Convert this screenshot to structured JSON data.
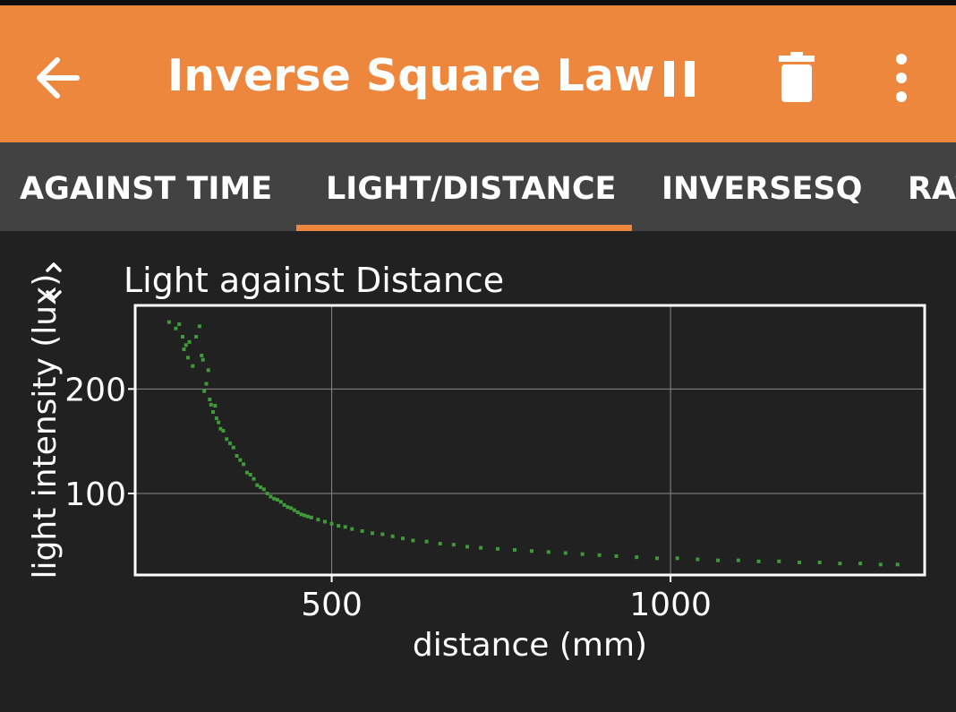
{
  "app": {
    "title": "Inverse Square Law",
    "accent_color": "#ee873e",
    "icons": {
      "back": "arrow-back-icon",
      "pause": "pause-icon",
      "delete": "trash-icon",
      "more": "more-vert-icon"
    }
  },
  "tabs": [
    {
      "label": "AGAINST TIME",
      "selected": false
    },
    {
      "label": "LIGHT/DISTANCE",
      "selected": true
    },
    {
      "label": "INVERSESQ",
      "selected": false
    },
    {
      "label": "RAW",
      "selected": false
    }
  ],
  "chart_data": {
    "type": "scatter",
    "title": "Light against Distance",
    "xlabel": "distance (mm)",
    "ylabel": "light intensity (lux)",
    "xlim": [
      210,
      1375
    ],
    "ylim": [
      22,
      280
    ],
    "xticks": [
      500,
      1000
    ],
    "yticks": [
      100,
      200
    ],
    "grid": true,
    "point_color": "#3f9a3a",
    "series": [
      {
        "x": [
          260,
          270,
          275,
          280,
          282,
          285,
          288,
          290,
          295,
          300,
          305,
          308,
          310,
          312,
          315,
          318,
          320,
          322,
          325,
          328,
          330,
          333,
          336,
          340,
          345,
          350,
          355,
          360,
          365,
          370,
          375,
          380,
          385,
          390,
          395,
          400,
          405,
          410,
          415,
          420,
          425,
          430,
          435,
          440,
          445,
          450,
          455,
          460,
          465,
          470,
          480,
          490,
          500,
          510,
          520,
          530,
          545,
          560,
          575,
          590,
          605,
          620,
          640,
          660,
          680,
          700,
          720,
          745,
          770,
          795,
          820,
          845,
          870,
          895,
          920,
          950,
          980,
          1010,
          1040,
          1070,
          1100,
          1130,
          1160,
          1190,
          1220,
          1250,
          1280,
          1310,
          1335
        ],
        "y": [
          264,
          258,
          262,
          250,
          238,
          242,
          230,
          245,
          222,
          250,
          260,
          232,
          228,
          198,
          205,
          218,
          190,
          185,
          178,
          184,
          172,
          168,
          162,
          160,
          152,
          148,
          144,
          136,
          132,
          128,
          120,
          118,
          114,
          108,
          106,
          104,
          100,
          97,
          95,
          94,
          92,
          89,
          87,
          86,
          84,
          82,
          80,
          79,
          78,
          77,
          75,
          73,
          71,
          69,
          68,
          66,
          64,
          62,
          61,
          59,
          57,
          55,
          54,
          52,
          51,
          49,
          48,
          47,
          46,
          45,
          44,
          43,
          42,
          41,
          40,
          39,
          38,
          38,
          37,
          36,
          36,
          35,
          35,
          34,
          34,
          33,
          33,
          32,
          32
        ]
      }
    ]
  }
}
